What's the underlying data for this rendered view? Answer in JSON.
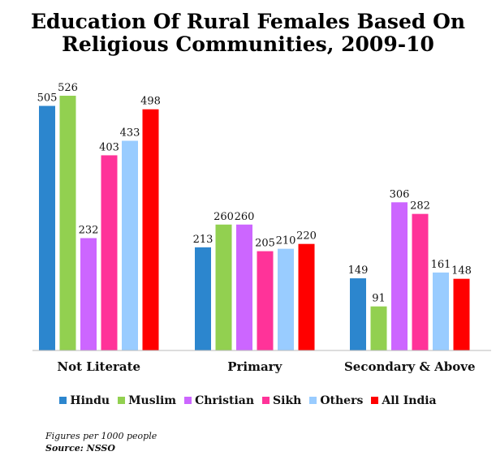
{
  "title_lines": [
    "Education Of Rural Females Based On",
    "Religious Communities, 2009-10"
  ],
  "notes": [
    "Figures per 1000 people",
    "Source: NSSO"
  ],
  "chart_data": {
    "type": "bar",
    "title": "Education Of Rural Females Based On Religious Communities, 2009-10",
    "categories": [
      "Not Literate",
      "Primary",
      "Secondary & Above"
    ],
    "series": [
      {
        "name": "Hindu",
        "color": "#2C86CE",
        "values": [
          505,
          213,
          149
        ]
      },
      {
        "name": "Muslim",
        "color": "#92D050",
        "values": [
          526,
          260,
          91
        ]
      },
      {
        "name": "Christian",
        "color": "#CC66FF",
        "values": [
          232,
          260,
          306
        ]
      },
      {
        "name": "Sikh",
        "color": "#FF3399",
        "values": [
          403,
          205,
          282
        ]
      },
      {
        "name": "Others",
        "color": "#99CCFF",
        "values": [
          433,
          210,
          161
        ]
      },
      {
        "name": "All India",
        "color": "#FF0000",
        "values": [
          498,
          220,
          148
        ]
      }
    ],
    "ylim": [
      0,
      526
    ],
    "grid": false,
    "legend": "bottom"
  }
}
